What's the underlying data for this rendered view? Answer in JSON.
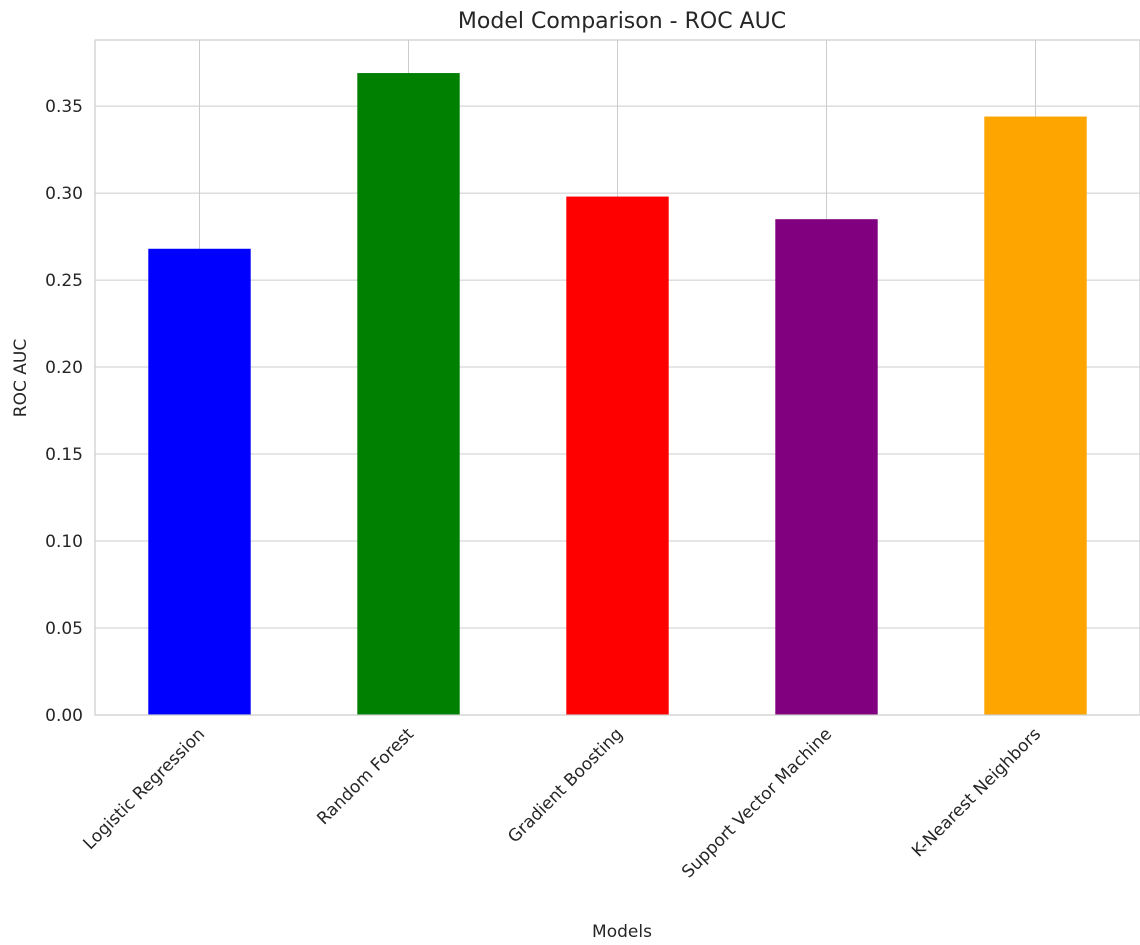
{
  "chart_data": {
    "type": "bar",
    "title": "Model Comparison - ROC AUC",
    "xlabel": "Models",
    "ylabel": "ROC AUC",
    "categories": [
      "Logistic Regression",
      "Random Forest",
      "Gradient Boosting",
      "Support Vector Machine",
      "K-Nearest Neighbors"
    ],
    "values": [
      0.268,
      0.369,
      0.298,
      0.285,
      0.344
    ],
    "colors": [
      "#0000ff",
      "#008000",
      "#ff0000",
      "#800080",
      "#ffa500"
    ],
    "ylim": [
      0,
      0.388
    ],
    "yticks": [
      "0.00",
      "0.05",
      "0.10",
      "0.15",
      "0.20",
      "0.25",
      "0.30",
      "0.35"
    ],
    "grid": true,
    "legend": "none"
  }
}
